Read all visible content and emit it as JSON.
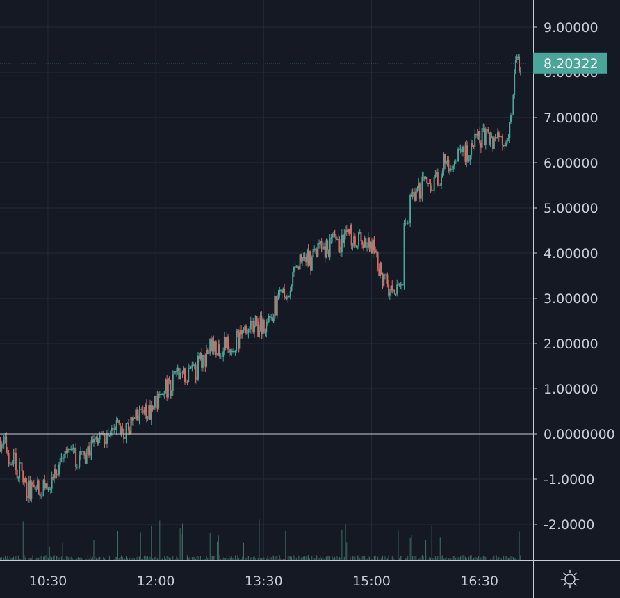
{
  "chart_data": {
    "type": "candlestick",
    "y_ticks": [
      "9.00000",
      "8.00000",
      "7.00000",
      "6.00000",
      "5.00000",
      "4.00000",
      "3.00000",
      "2.00000",
      "1.00000",
      "0.0000000",
      "-1.0000",
      "-2.0000"
    ],
    "y_tick_values": [
      9,
      8,
      7,
      6,
      5,
      4,
      3,
      2,
      1,
      0,
      -1,
      -2
    ],
    "x_ticks": [
      "10:30",
      "12:00",
      "13:30",
      "15:00",
      "16:30"
    ],
    "ylim": [
      -2.8,
      9.6
    ],
    "xlim": [
      "09:50",
      "17:05"
    ],
    "last_price": "8.20322",
    "last_price_value": 8.20322,
    "zero_line": 0,
    "grid": true,
    "colors": {
      "background": "#151924",
      "grid": "#242a38",
      "up": "#4aa59b",
      "down": "#e0675e",
      "axis_text": "#c8ccd4",
      "price_label": "#4aa59b",
      "volume": "#3f6f62"
    },
    "trend": [
      [
        "09:50",
        -0.1
      ],
      [
        "10:05",
        -0.8
      ],
      [
        "10:15",
        -1.3
      ],
      [
        "10:30",
        -1.0
      ],
      [
        "10:45",
        -0.6
      ],
      [
        "11:00",
        -0.4
      ],
      [
        "11:15",
        -0.2
      ],
      [
        "11:30",
        0.1
      ],
      [
        "11:45",
        0.3
      ],
      [
        "12:00",
        0.7
      ],
      [
        "12:15",
        1.2
      ],
      [
        "12:30",
        1.3
      ],
      [
        "12:45",
        1.9
      ],
      [
        "13:00",
        2.0
      ],
      [
        "13:15",
        2.2
      ],
      [
        "13:30",
        2.5
      ],
      [
        "13:45",
        3.0
      ],
      [
        "14:00",
        3.7
      ],
      [
        "14:15",
        4.0
      ],
      [
        "14:30",
        4.2
      ],
      [
        "14:45",
        4.4
      ],
      [
        "15:00",
        4.1
      ],
      [
        "15:10",
        3.4
      ],
      [
        "15:20",
        2.85
      ],
      [
        "15:25",
        4.8
      ],
      [
        "15:35",
        5.3
      ],
      [
        "15:50",
        5.6
      ],
      [
        "16:05",
        6.1
      ],
      [
        "16:20",
        6.3
      ],
      [
        "16:35",
        6.6
      ],
      [
        "16:50",
        6.5
      ],
      [
        "16:55",
        7.0
      ],
      [
        "17:00",
        8.2
      ]
    ]
  },
  "icons": {
    "settings": "sun-gear-icon"
  }
}
